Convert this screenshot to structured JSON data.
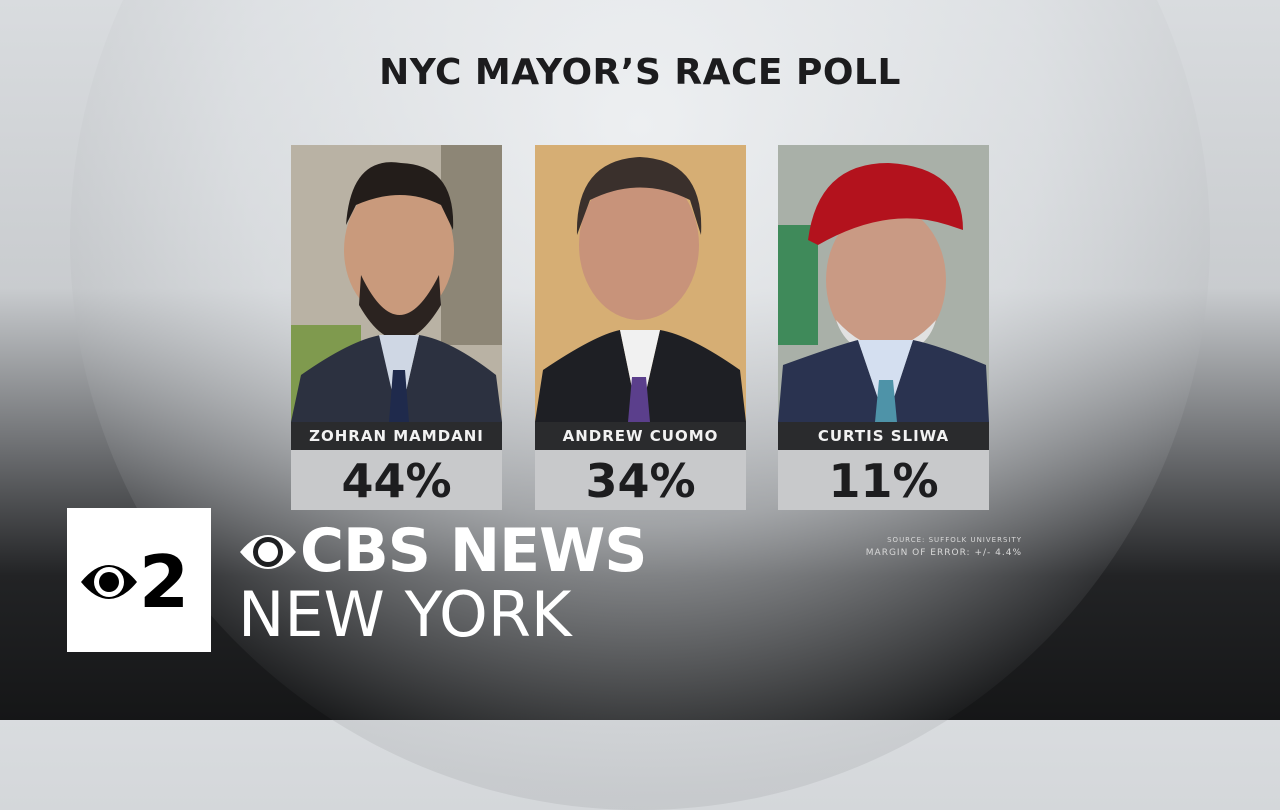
{
  "header": {
    "title": "NYC MAYOR’S RACE POLL"
  },
  "candidates": [
    {
      "name": "ZOHRAN MAMDANI",
      "percent": "44%"
    },
    {
      "name": "ANDREW CUOMO",
      "percent": "34%"
    },
    {
      "name": "CURTIS SLIWA",
      "percent": "11%"
    }
  ],
  "footnote": {
    "source": "SOURCE: SUFFOLK UNIVERSITY",
    "margin": "MARGIN OF ERROR: +/- 4.4%"
  },
  "logo": {
    "channel": "2",
    "network": "CBS NEWS",
    "city": "NEW YORK"
  }
}
